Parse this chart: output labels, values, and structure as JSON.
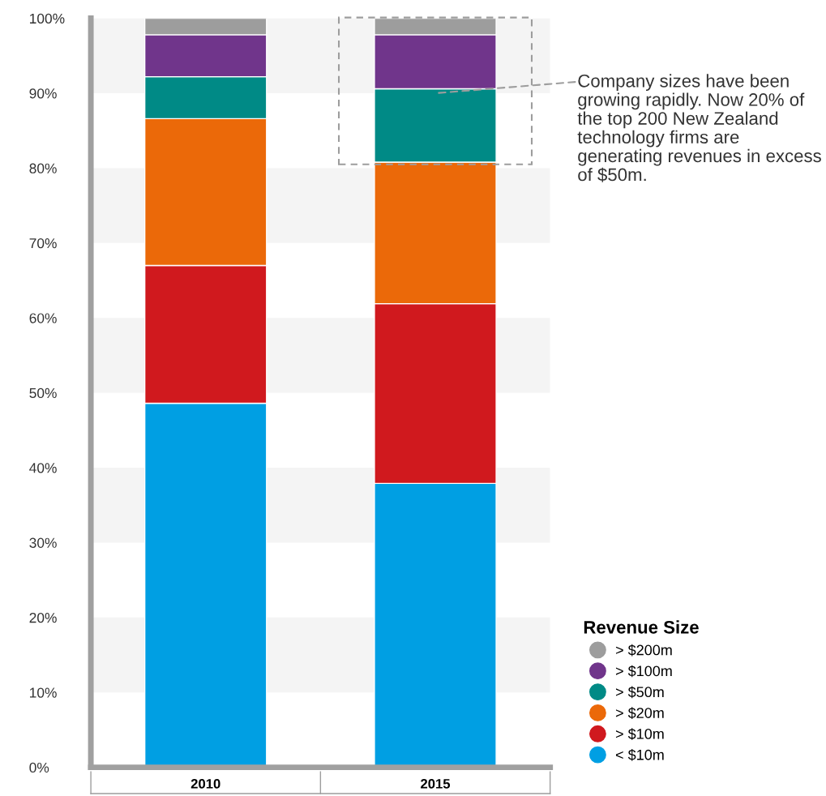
{
  "chart_data": {
    "type": "bar",
    "stacked": true,
    "categories": [
      "2010",
      "2015"
    ],
    "series": [
      {
        "name": "< $10m",
        "color": "#009fe3",
        "values": [
          48.6,
          37.9
        ]
      },
      {
        "name": "> $10m",
        "color": "#d0191e",
        "values": [
          18.4,
          24.0
        ]
      },
      {
        "name": "> $20m",
        "color": "#eb6909",
        "values": [
          19.6,
          18.9
        ]
      },
      {
        "name": "> $50m",
        "color": "#008a86",
        "values": [
          5.6,
          9.8
        ]
      },
      {
        "name": "> $100m",
        "color": "#70358b",
        "values": [
          5.6,
          7.2
        ]
      },
      {
        "name": "> $200m",
        "color": "#9d9d9d",
        "values": [
          2.2,
          2.2
        ]
      }
    ],
    "ylim": [
      0,
      100
    ],
    "yticks": [
      {
        "value": 0,
        "label": "0%"
      },
      {
        "value": 10,
        "label": "10%"
      },
      {
        "value": 20,
        "label": "20%"
      },
      {
        "value": 30,
        "label": "30%"
      },
      {
        "value": 40,
        "label": "40%"
      },
      {
        "value": 50,
        "label": "50%"
      },
      {
        "value": 60,
        "label": "60%"
      },
      {
        "value": 70,
        "label": "70%"
      },
      {
        "value": 80,
        "label": "80%"
      },
      {
        "value": 90,
        "label": "90%"
      },
      {
        "value": 100,
        "label": "100%"
      }
    ],
    "bands": [
      {
        "axis": "y",
        "from": 10,
        "to": 20,
        "color": "#f4f4f4"
      },
      {
        "axis": "y",
        "from": 30,
        "to": 40,
        "color": "#f4f4f4"
      },
      {
        "axis": "y",
        "from": 50,
        "to": 60,
        "color": "#f4f4f4"
      },
      {
        "axis": "y",
        "from": 70,
        "to": 80,
        "color": "#f4f4f4"
      },
      {
        "axis": "y",
        "from": 90,
        "to": 100,
        "color": "#f4f4f4"
      }
    ],
    "legend": "bottom right",
    "legend_title": "Revenue Size",
    "grid": false,
    "annotations": [
      {
        "text": "Company sizes have been growing rapidly. Now 20% of the top 200 New Zealand technology firms are generating revenues in excess of $50m.",
        "x": "2015",
        "y": 90
      }
    ]
  }
}
